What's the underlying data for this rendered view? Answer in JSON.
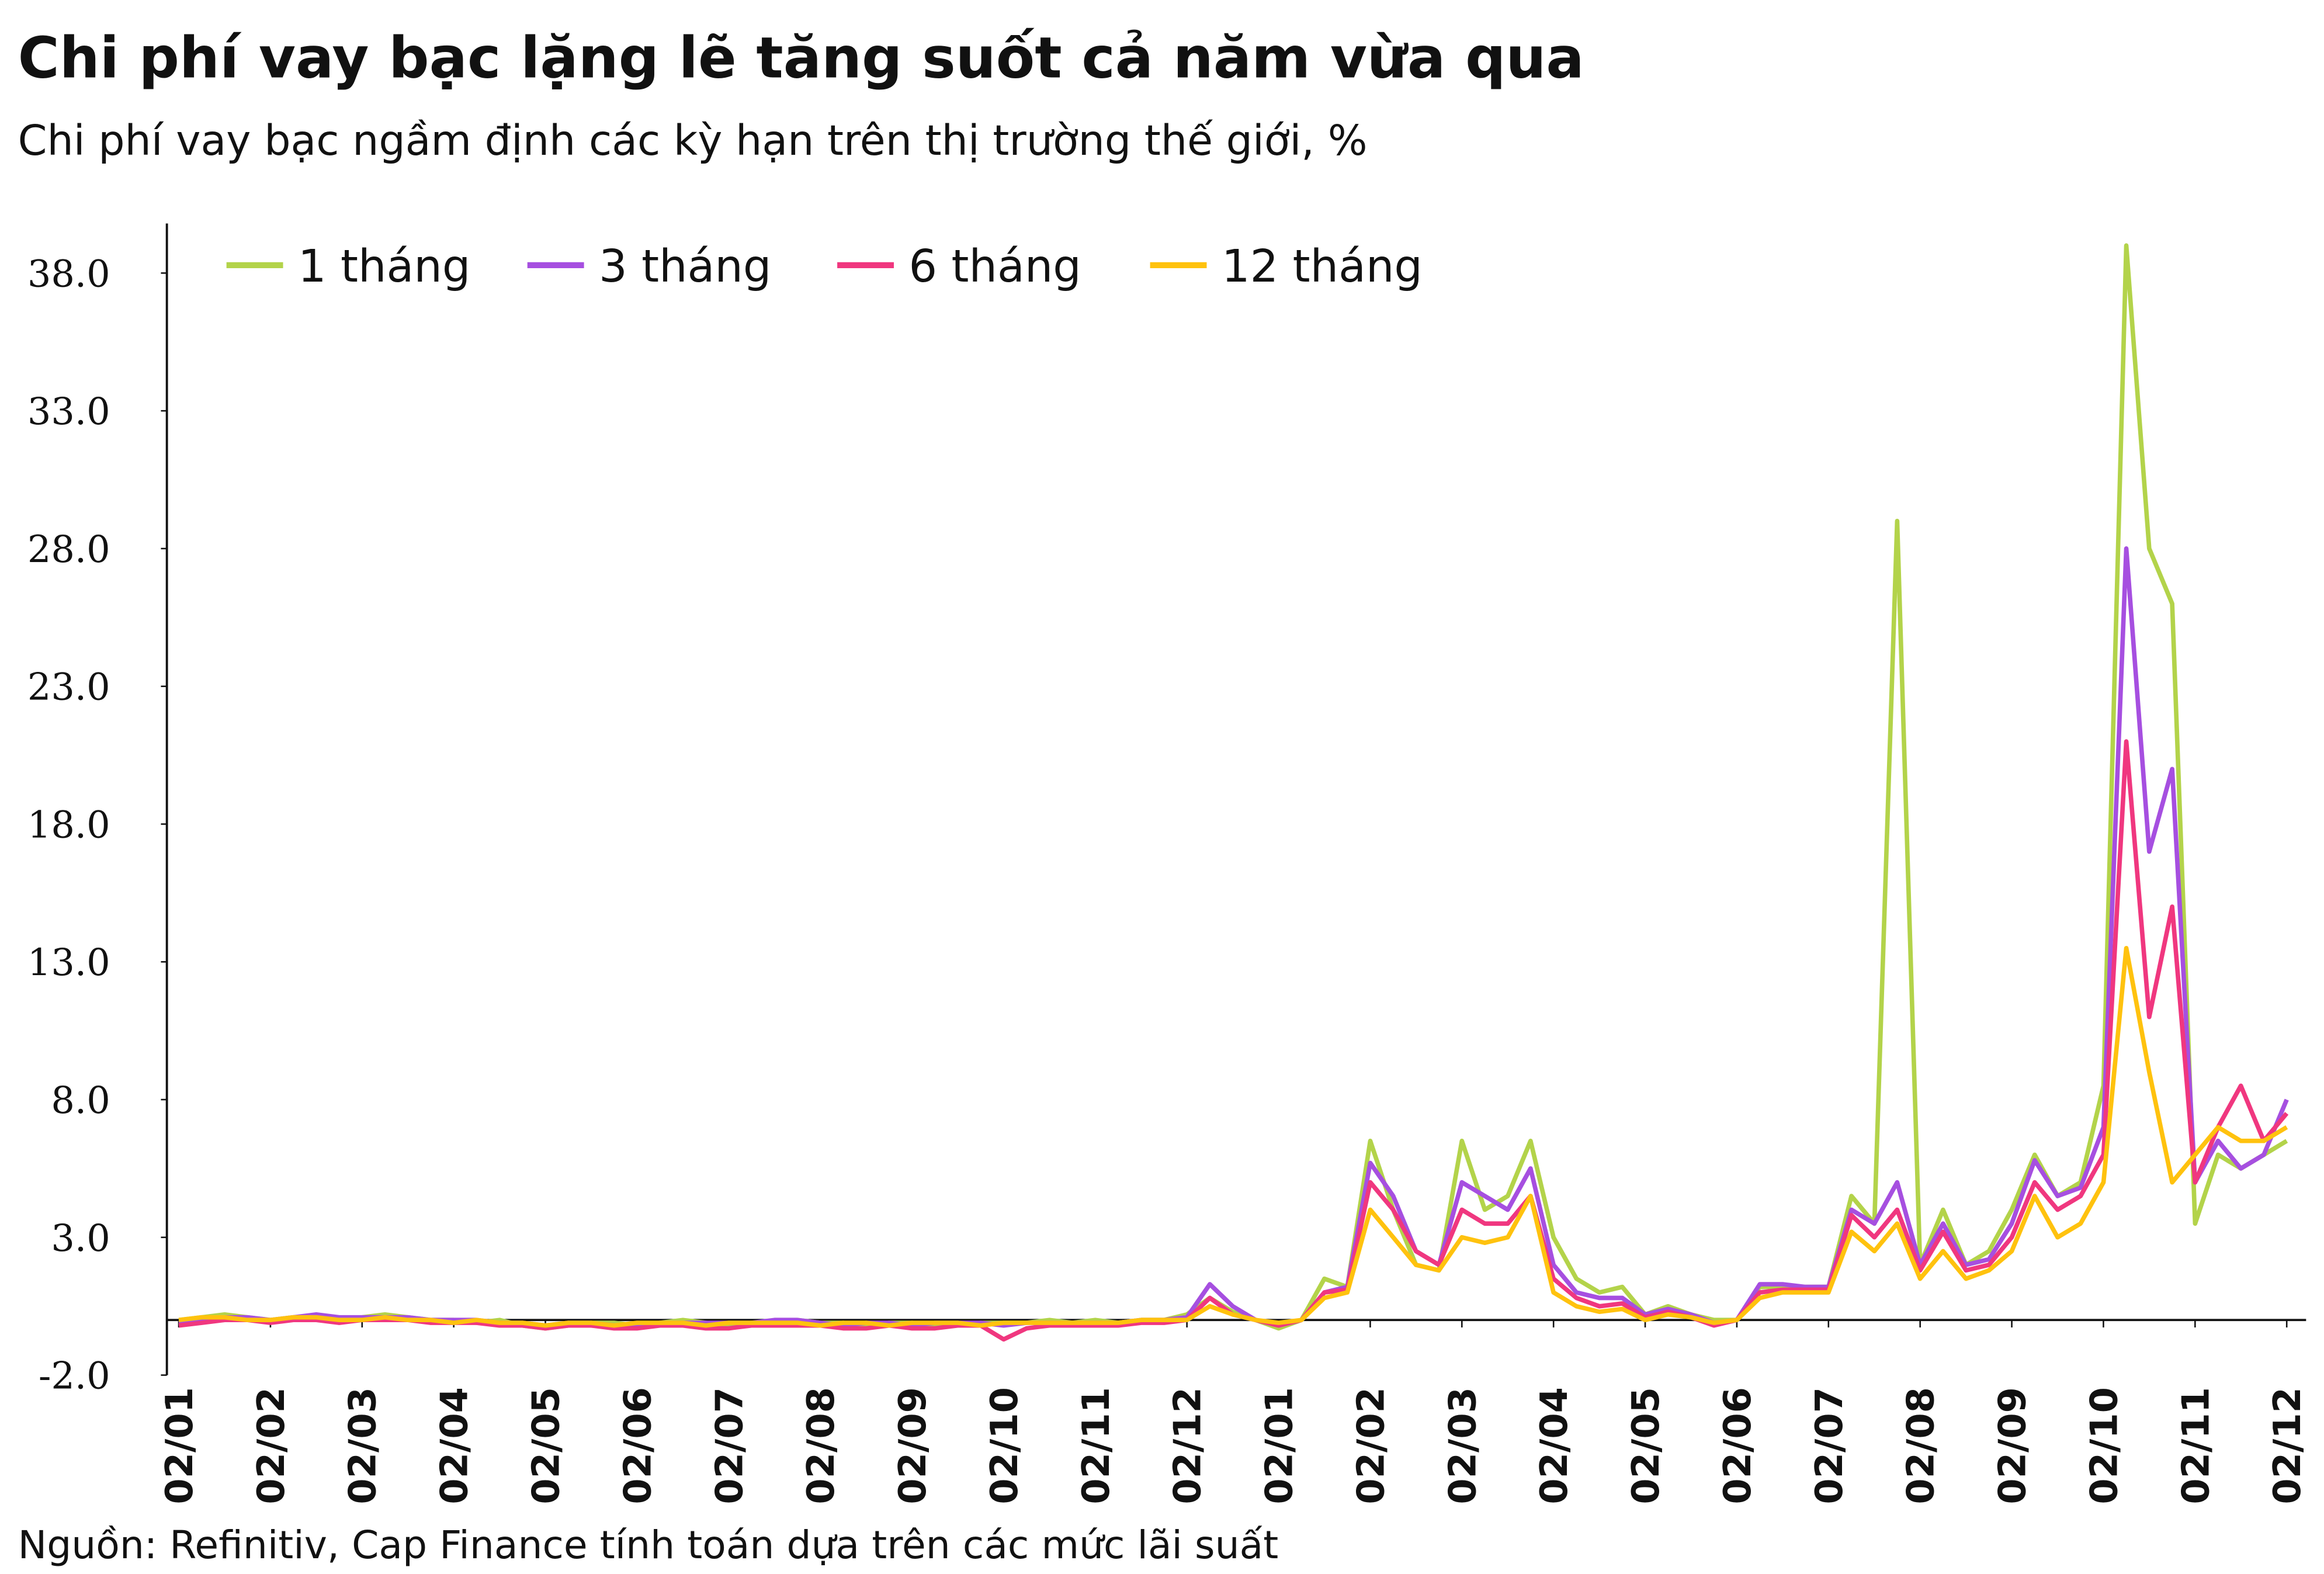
{
  "chart_data": {
    "type": "line",
    "title": "Chi phí vay bạc lặng lẽ tăng suốt cả năm vừa qua",
    "subtitle": "Chi phí vay bạc ngầm định các kỳ hạn trên thị trường thế giới, %",
    "source": "Nguồn: Refinitiv, Cap Finance tính toán dựa trên các mức lãi suất",
    "categories": [
      "02/01",
      null,
      null,
      null,
      "02/02",
      null,
      null,
      null,
      "02/03",
      null,
      null,
      null,
      "02/04",
      null,
      null,
      null,
      "02/05",
      null,
      null,
      null,
      "02/06",
      null,
      null,
      null,
      "02/07",
      null,
      null,
      null,
      "02/08",
      null,
      null,
      null,
      "02/09",
      null,
      null,
      null,
      "02/10",
      null,
      null,
      null,
      "02/11",
      null,
      null,
      null,
      "02/12",
      null,
      null,
      null,
      "02/01",
      null,
      null,
      null,
      "02/02",
      null,
      null,
      null,
      "02/03",
      null,
      null,
      null,
      "02/04",
      null,
      null,
      null,
      "02/05",
      null,
      null,
      null,
      "02/06",
      null,
      null,
      null,
      "02/07",
      null,
      null,
      null,
      "02/08",
      null,
      null,
      null,
      "02/09",
      null,
      null,
      null,
      "02/10",
      null,
      null,
      null,
      "02/11",
      null,
      null,
      null,
      "02/12"
    ],
    "ylim": [
      -2,
      39.8
    ],
    "yticks": [
      {
        "value": -2,
        "label": "-2.0"
      },
      {
        "value": 3,
        "label": "3.0"
      },
      {
        "value": 8,
        "label": "8.0"
      },
      {
        "value": 13,
        "label": "13.0"
      },
      {
        "value": 18,
        "label": "18.0"
      },
      {
        "value": 23,
        "label": "23.0"
      },
      {
        "value": 28,
        "label": "28.0"
      },
      {
        "value": 33,
        "label": "33.0"
      },
      {
        "value": 38,
        "label": "38.0"
      }
    ],
    "legend": "top-left",
    "series": [
      {
        "name": "1 tháng",
        "color": "#b3d34a",
        "values": [
          0,
          0.1,
          0.2,
          0.1,
          0,
          0.1,
          0.1,
          0,
          0.1,
          0.2,
          0.1,
          0,
          0,
          -0.1,
          0,
          -0.2,
          -0.3,
          -0.2,
          -0.1,
          -0.1,
          -0.2,
          -0.1,
          0,
          -0.1,
          -0.2,
          -0.1,
          -0.1,
          0,
          -0.1,
          -0.1,
          -0.2,
          -0.1,
          -0.1,
          -0.2,
          -0.2,
          -0.1,
          -0.1,
          -0.1,
          0,
          -0.1,
          0,
          -0.1,
          0,
          0,
          0.2,
          0.8,
          0.3,
          0,
          -0.3,
          0,
          1.5,
          1.2,
          6.5,
          4,
          2,
          1.8,
          6.5,
          4,
          4.5,
          6.5,
          3,
          1.5,
          1,
          1.2,
          0.2,
          0.5,
          0.2,
          0,
          0,
          1.2,
          1.2,
          1.2,
          1.2,
          4.5,
          3.5,
          29,
          2,
          4,
          2,
          2.5,
          4,
          6,
          4.5,
          5,
          8.5,
          39,
          28,
          26,
          3.5,
          6,
          5.5,
          6,
          6.5
        ]
      },
      {
        "name": "3 tháng",
        "color": "#a64fe0",
        "values": [
          -0.1,
          0,
          0.1,
          0.1,
          0,
          0.1,
          0.2,
          0.1,
          0.1,
          0.1,
          0.1,
          0,
          0,
          0,
          -0.1,
          -0.1,
          -0.2,
          -0.1,
          -0.1,
          -0.2,
          -0.2,
          -0.1,
          -0.1,
          -0.1,
          -0.1,
          -0.1,
          0,
          0,
          -0.1,
          -0.2,
          -0.1,
          -0.1,
          -0.2,
          -0.1,
          -0.1,
          -0.1,
          -0.2,
          -0.1,
          -0.1,
          -0.1,
          -0.1,
          -0.1,
          0,
          0,
          0.1,
          1.3,
          0.5,
          0,
          -0.2,
          0,
          1,
          1.2,
          5.7,
          4.5,
          2.5,
          2,
          5,
          4.5,
          4,
          5.5,
          2,
          1,
          0.8,
          0.8,
          0.2,
          0.4,
          0.2,
          -0.1,
          0,
          1.3,
          1.3,
          1.2,
          1.2,
          4,
          3.5,
          5,
          2,
          3.5,
          2,
          2.2,
          3.5,
          5.8,
          4.5,
          4.8,
          7,
          28,
          17,
          20,
          5,
          6.5,
          5.5,
          6,
          8
        ]
      },
      {
        "name": "6 tháng",
        "color": "#f0377f",
        "values": [
          -0.2,
          -0.1,
          0,
          0,
          -0.1,
          0,
          0,
          -0.1,
          0,
          0,
          0,
          -0.1,
          -0.1,
          -0.1,
          -0.2,
          -0.2,
          -0.3,
          -0.2,
          -0.2,
          -0.3,
          -0.3,
          -0.2,
          -0.2,
          -0.3,
          -0.3,
          -0.2,
          -0.2,
          -0.2,
          -0.2,
          -0.3,
          -0.3,
          -0.2,
          -0.3,
          -0.3,
          -0.2,
          -0.2,
          -0.7,
          -0.3,
          -0.2,
          -0.2,
          -0.2,
          -0.2,
          -0.1,
          -0.1,
          0,
          0.8,
          0.2,
          0,
          -0.2,
          0,
          1,
          1.1,
          5,
          4,
          2.5,
          2,
          4,
          3.5,
          3.5,
          4.5,
          1.5,
          0.8,
          0.5,
          0.6,
          0.1,
          0.3,
          0.1,
          -0.2,
          0,
          1,
          1.1,
          1.1,
          1.1,
          3.8,
          3,
          4,
          1.8,
          3.2,
          1.8,
          2,
          3,
          5,
          4,
          4.5,
          6,
          21,
          11,
          15,
          5,
          7,
          8.5,
          6.5,
          7.5
        ]
      },
      {
        "name": "12 tháng",
        "color": "#ffc20e",
        "values": [
          0,
          0.1,
          0.1,
          0,
          0,
          0.1,
          0.1,
          0,
          0,
          0.1,
          0,
          0,
          -0.1,
          0,
          -0.1,
          -0.1,
          -0.2,
          -0.1,
          -0.1,
          -0.2,
          -0.1,
          -0.1,
          -0.1,
          -0.2,
          -0.1,
          -0.1,
          -0.1,
          -0.1,
          -0.2,
          -0.1,
          -0.1,
          -0.2,
          -0.1,
          -0.1,
          -0.1,
          -0.2,
          -0.1,
          -0.1,
          -0.1,
          -0.1,
          -0.1,
          -0.1,
          0,
          0,
          0,
          0.5,
          0.2,
          0,
          -0.1,
          0,
          0.8,
          1,
          4,
          3,
          2,
          1.8,
          3,
          2.8,
          3,
          4.5,
          1,
          0.5,
          0.3,
          0.4,
          0,
          0.2,
          0.1,
          -0.1,
          0,
          0.8,
          1,
          1,
          1,
          3.2,
          2.5,
          3.5,
          1.5,
          2.5,
          1.5,
          1.8,
          2.5,
          4.5,
          3,
          3.5,
          5,
          13.5,
          9,
          5,
          6,
          7,
          6.5,
          6.5,
          7
        ]
      }
    ]
  }
}
